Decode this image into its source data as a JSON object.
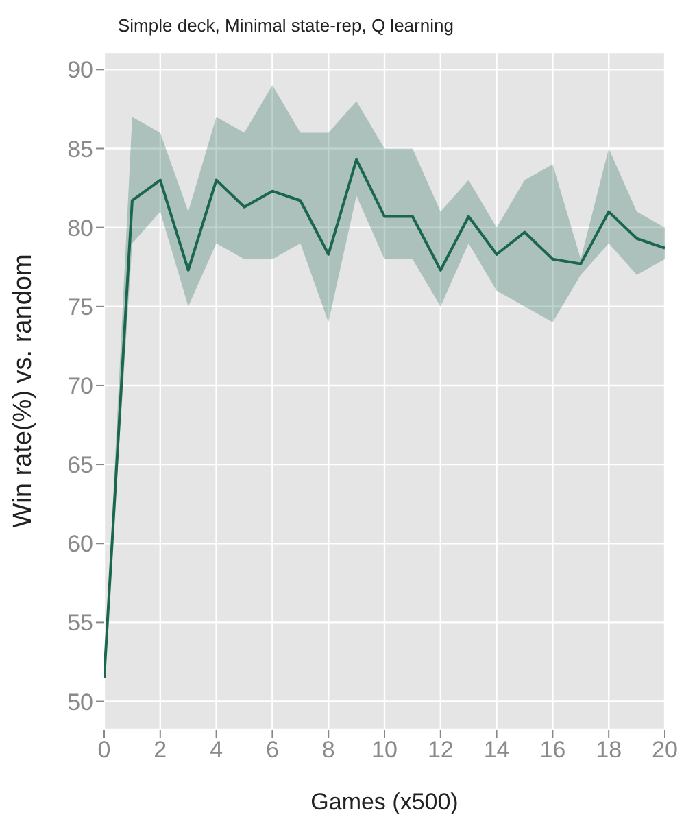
{
  "chart_data": {
    "type": "line",
    "title": "Simple deck, Minimal state-rep, Q learning",
    "xlabel": "Games (x500)",
    "ylabel": "Win rate(%) vs. random",
    "x": [
      0,
      1,
      2,
      3,
      4,
      5,
      6,
      7,
      8,
      9,
      10,
      11,
      12,
      13,
      14,
      15,
      16,
      17,
      18,
      19,
      20
    ],
    "series": [
      {
        "color": "#1a6650",
        "values": [
          51.5,
          81.7,
          83,
          77.3,
          83,
          81.3,
          82.3,
          81.7,
          78.3,
          84.3,
          80.7,
          80.7,
          77.3,
          80.7,
          78.3,
          79.7,
          78,
          77.7,
          81,
          79.3,
          78.7
        ],
        "lower": [
          51.5,
          79,
          81,
          75,
          79,
          78,
          78,
          79,
          74,
          82,
          78,
          78,
          75,
          79,
          76,
          75,
          74,
          77,
          79,
          77,
          78
        ],
        "upper": [
          51.5,
          87,
          86,
          81,
          87,
          86,
          89,
          86,
          86,
          88,
          85,
          85,
          81,
          83,
          80,
          83,
          84,
          78,
          85,
          81,
          80
        ]
      }
    ],
    "xlim": [
      0,
      20
    ],
    "xticks": [
      0,
      2,
      4,
      6,
      8,
      10,
      12,
      14,
      16,
      18,
      20
    ],
    "ylim": [
      48.2,
      91.1
    ],
    "yticks": [
      50,
      55,
      60,
      65,
      70,
      75,
      80,
      85,
      90
    ],
    "grid": true,
    "marker": "none",
    "line_style": "solid"
  }
}
